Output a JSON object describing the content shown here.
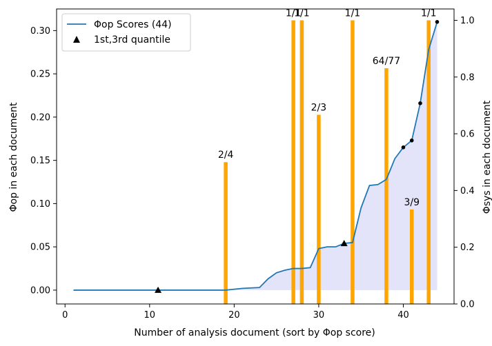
{
  "chart_data": {
    "type": "line",
    "xlabel": "Number of analysis document (sort by Φop score)",
    "ylabel_left": "Φop in each document",
    "ylabel_right": "Φsys in each document",
    "xlim": [
      -1,
      46
    ],
    "ylim_left": [
      -0.016,
      0.325
    ],
    "ylim_right": [
      0,
      1.04
    ],
    "x_ticks": [
      0,
      10,
      20,
      30,
      40
    ],
    "y_left_ticks": [
      "0.00",
      "0.05",
      "0.10",
      "0.15",
      "0.20",
      "0.25",
      "0.30"
    ],
    "y_right_ticks": [
      "0.0",
      "0.2",
      "0.4",
      "0.6",
      "0.8",
      "1.0"
    ],
    "legend_position": "top-left",
    "colors": {
      "line": "#1f77b4",
      "fill": "#e3e3fa",
      "bars": "#ffa500",
      "markers": "#000000"
    },
    "series": [
      {
        "name": "Φop Scores (44)",
        "x": [
          1,
          2,
          3,
          4,
          5,
          6,
          7,
          8,
          9,
          10,
          11,
          12,
          13,
          14,
          15,
          16,
          17,
          18,
          19,
          20,
          21,
          22,
          23,
          24,
          25,
          26,
          27,
          28,
          29,
          30,
          31,
          32,
          33,
          34,
          35,
          36,
          37,
          38,
          39,
          40,
          41,
          42,
          43,
          44
        ],
        "y": [
          0,
          0,
          0,
          0,
          0,
          0,
          0,
          0,
          0,
          0,
          0,
          0,
          0,
          0,
          0,
          0,
          0,
          0,
          0,
          0.001,
          0.002,
          0.0025,
          0.003,
          0.013,
          0.02,
          0.023,
          0.025,
          0.025,
          0.026,
          0.048,
          0.05,
          0.05,
          0.054,
          0.055,
          0.095,
          0.121,
          0.122,
          0.128,
          0.152,
          0.165,
          0.173,
          0.216,
          0.278,
          0.31
        ]
      }
    ],
    "quantile_markers": {
      "name": "1st,3rd quantile",
      "points": [
        {
          "x": 11,
          "y": 0
        },
        {
          "x": 33,
          "y": 0.054
        }
      ]
    },
    "highlight_points": [
      {
        "x": 40,
        "y": 0.165
      },
      {
        "x": 41,
        "y": 0.173
      },
      {
        "x": 42,
        "y": 0.216
      },
      {
        "x": 44,
        "y": 0.31
      }
    ],
    "bars": [
      {
        "x": 19,
        "value": 0.5,
        "label": "2/4"
      },
      {
        "x": 27,
        "value": 1.0,
        "label": "1/1"
      },
      {
        "x": 28,
        "value": 1.0,
        "label": "1/1"
      },
      {
        "x": 30,
        "value": 0.667,
        "label": "2/3"
      },
      {
        "x": 34,
        "value": 1.0,
        "label": "1/1"
      },
      {
        "x": 38,
        "value": 0.831,
        "label": "64/77"
      },
      {
        "x": 41,
        "value": 0.333,
        "label": "3/9"
      },
      {
        "x": 43,
        "value": 1.0,
        "label": "1/1"
      }
    ]
  }
}
